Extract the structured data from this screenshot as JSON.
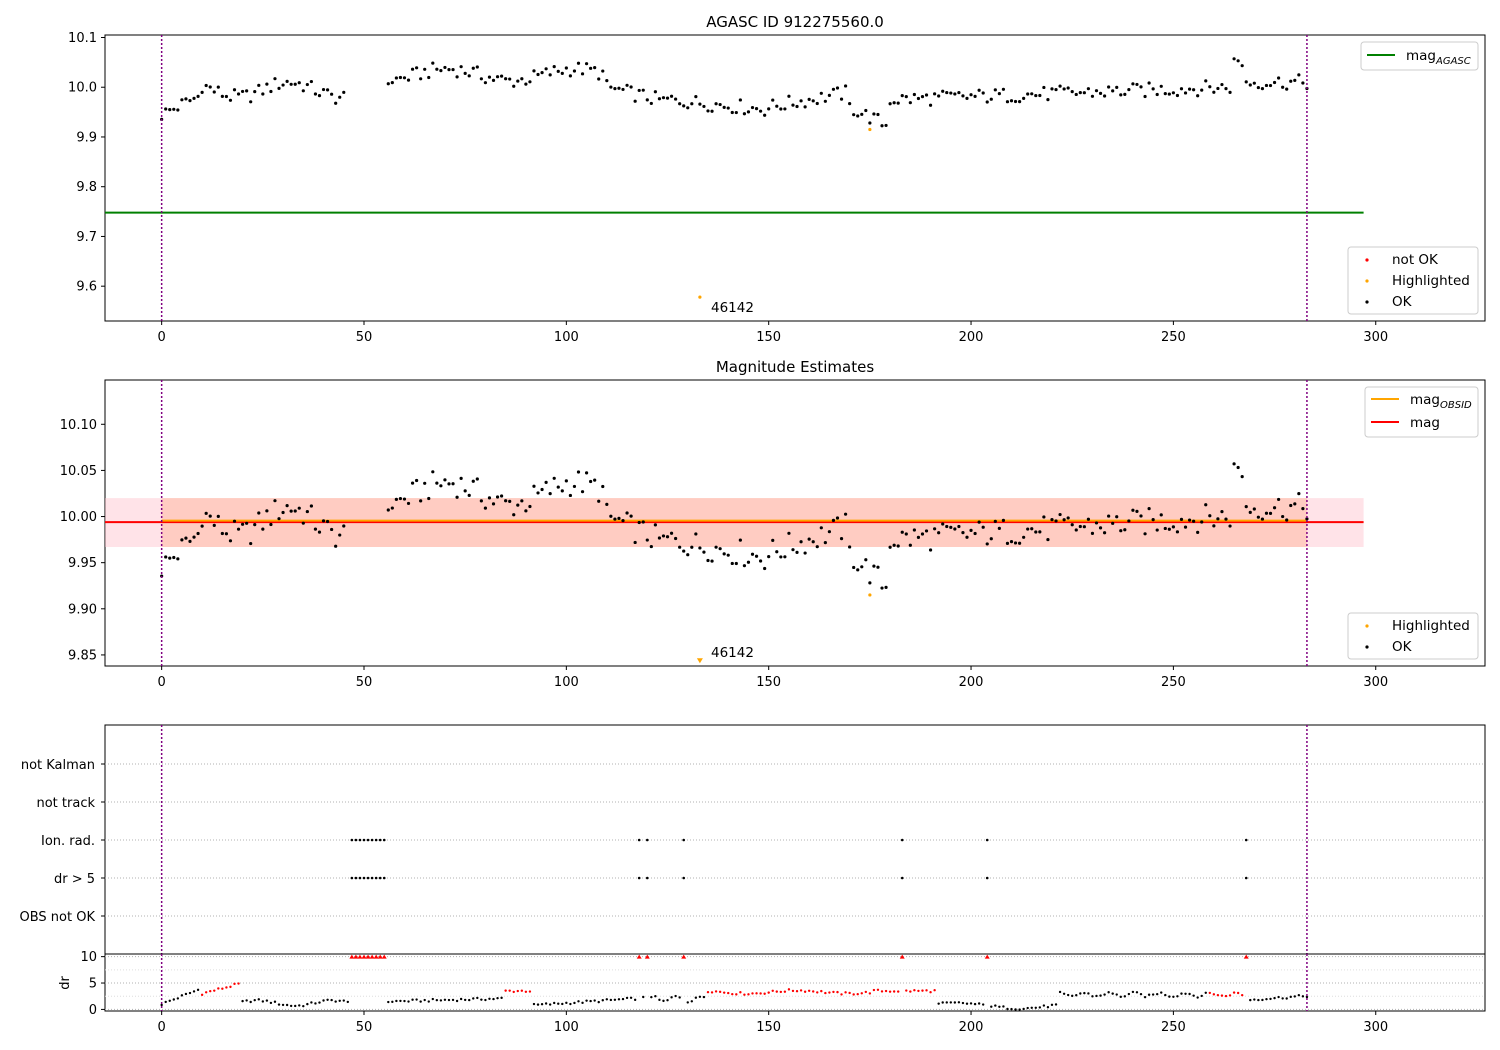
{
  "chart_data": [
    {
      "id": "agasc",
      "type": "scatter",
      "title": "AGASC ID 912275560.0",
      "xlim": [
        -14,
        327
      ],
      "ylim": [
        9.53,
        10.105
      ],
      "xticks": [
        0,
        50,
        100,
        150,
        200,
        250,
        300
      ],
      "yticks": [
        9.6,
        9.7,
        9.8,
        9.9,
        10.0,
        10.1
      ],
      "ytick_labels": [
        "9.6",
        "9.7",
        "9.8",
        "9.9",
        "10.0",
        "10.1"
      ],
      "vlines": [
        0,
        283
      ],
      "hline": {
        "name": "mag_AGASC",
        "label_main": "mag",
        "label_sub": "AGASC",
        "value": 9.748,
        "x_range": [
          -14,
          297
        ],
        "color": "#008000"
      },
      "highlighted_points": [
        {
          "x": 175,
          "y": 9.915
        },
        {
          "x": 133,
          "y": 9.578
        }
      ],
      "annotation": {
        "text": "46142",
        "x": 133,
        "y": 9.578
      },
      "legend_upper": [
        {
          "label": "mag",
          "sub": "AGASC",
          "marker": "line",
          "color": "#008000"
        }
      ],
      "legend_lower": [
        {
          "label": "not OK",
          "marker": "dot",
          "color": "#ff0000"
        },
        {
          "label": "Highlighted",
          "marker": "dot",
          "color": "#ffa500"
        },
        {
          "label": "OK",
          "marker": "dot",
          "color": "#000000"
        }
      ]
    },
    {
      "id": "estimates",
      "type": "scatter",
      "title": "Magnitude Estimates",
      "xlim": [
        -14,
        327
      ],
      "ylim": [
        9.838,
        10.148
      ],
      "xticks": [
        0,
        50,
        100,
        150,
        200,
        250,
        300
      ],
      "yticks": [
        9.85,
        9.9,
        9.95,
        10.0,
        10.05,
        10.1
      ],
      "ytick_labels": [
        "9.85",
        "9.90",
        "9.95",
        "10.00",
        "10.05",
        "10.10"
      ],
      "vlines": [
        0,
        283
      ],
      "mag_line": {
        "value": 9.994,
        "color": "#ff0000",
        "band": [
          9.967,
          10.02
        ],
        "band_color": "#ffc0cb",
        "x_range": [
          -14,
          297
        ]
      },
      "mag_obsid_line": {
        "value": 9.994,
        "color": "#ffa500",
        "band": [
          9.967,
          10.02
        ],
        "band_color": "#ffa07a",
        "x_range": [
          0,
          283
        ]
      },
      "highlighted_points": [
        {
          "x": 175,
          "y": 9.915
        }
      ],
      "offscale_marker": {
        "x": 133,
        "y": 9.842
      },
      "annotation": {
        "text": "46142",
        "x": 133,
        "y": 9.842
      },
      "legend_upper": [
        {
          "label": "mag",
          "sub": "OBSID",
          "marker": "line",
          "color": "#ffa500"
        },
        {
          "label": "mag",
          "sub": "",
          "marker": "line",
          "color": "#ff0000"
        }
      ],
      "legend_lower": [
        {
          "label": "Highlighted",
          "marker": "dot",
          "color": "#ffa500"
        },
        {
          "label": "OK",
          "marker": "dot",
          "color": "#000000"
        }
      ]
    },
    {
      "id": "flags",
      "type": "scatter",
      "xlim": [
        -14,
        327
      ],
      "categories": [
        "not Kalman",
        "not track",
        "Ion. rad.",
        "dr > 5",
        "OBS not OK"
      ],
      "vlines": [
        0,
        283
      ],
      "ion_rad_x": [
        47,
        48,
        49,
        50,
        51,
        52,
        53,
        54,
        55,
        118,
        120,
        129,
        183,
        204,
        268
      ],
      "dr5_x": [
        47,
        48,
        49,
        50,
        51,
        52,
        53,
        54,
        55,
        118,
        120,
        129,
        183,
        204,
        268
      ]
    },
    {
      "id": "dr",
      "type": "scatter",
      "ylabel": "dr",
      "xlim": [
        -14,
        327
      ],
      "ylim": [
        -0.3,
        10.5
      ],
      "yticks": [
        0,
        5,
        10
      ],
      "ytick_labels": [
        "0",
        "5",
        "10"
      ],
      "xticks": [
        0,
        50,
        100,
        150,
        200,
        250,
        300
      ],
      "vlines": [
        0,
        283
      ],
      "clipped_x": [
        47,
        48,
        49,
        50,
        51,
        52,
        53,
        54,
        55,
        118,
        120,
        129,
        183,
        204,
        268
      ]
    }
  ]
}
